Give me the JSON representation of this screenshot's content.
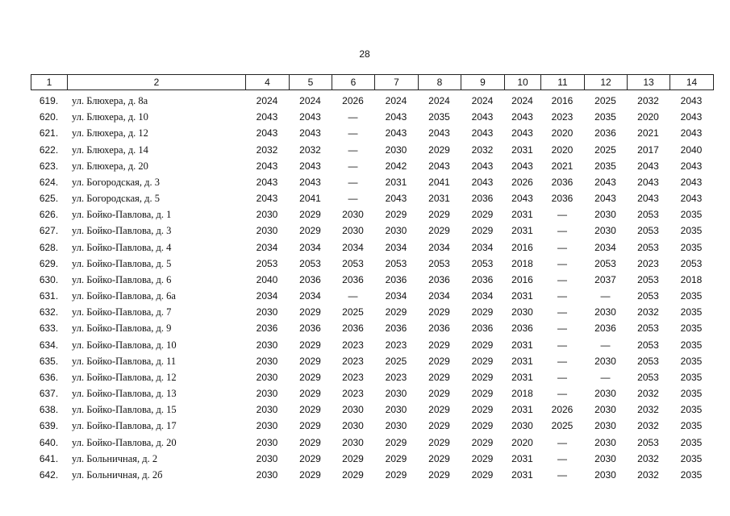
{
  "page_number": "28",
  "table": {
    "header": [
      "1",
      "2",
      "4",
      "5",
      "6",
      "7",
      "8",
      "9",
      "10",
      "11",
      "12",
      "13",
      "14"
    ],
    "rows": [
      [
        "619.",
        "ул. Блюхера, д. 8а",
        "2024",
        "2024",
        "2026",
        "2024",
        "2024",
        "2024",
        "2024",
        "2016",
        "2025",
        "2032",
        "2043"
      ],
      [
        "620.",
        "ул. Блюхера, д. 10",
        "2043",
        "2043",
        "—",
        "2043",
        "2035",
        "2043",
        "2043",
        "2023",
        "2035",
        "2020",
        "2043"
      ],
      [
        "621.",
        "ул. Блюхера, д. 12",
        "2043",
        "2043",
        "—",
        "2043",
        "2043",
        "2043",
        "2043",
        "2020",
        "2036",
        "2021",
        "2043"
      ],
      [
        "622.",
        "ул. Блюхера, д. 14",
        "2032",
        "2032",
        "—",
        "2030",
        "2029",
        "2032",
        "2031",
        "2020",
        "2025",
        "2017",
        "2040"
      ],
      [
        "623.",
        "ул. Блюхера, д. 20",
        "2043",
        "2043",
        "—",
        "2042",
        "2043",
        "2043",
        "2043",
        "2021",
        "2035",
        "2043",
        "2043"
      ],
      [
        "624.",
        "ул. Богородская, д. 3",
        "2043",
        "2043",
        "—",
        "2031",
        "2041",
        "2043",
        "2026",
        "2036",
        "2043",
        "2043",
        "2043"
      ],
      [
        "625.",
        "ул. Богородская, д. 5",
        "2043",
        "2041",
        "—",
        "2043",
        "2031",
        "2036",
        "2043",
        "2036",
        "2043",
        "2043",
        "2043"
      ],
      [
        "626.",
        "ул. Бойко-Павлова, д. 1",
        "2030",
        "2029",
        "2030",
        "2029",
        "2029",
        "2029",
        "2031",
        "—",
        "2030",
        "2053",
        "2035"
      ],
      [
        "627.",
        "ул. Бойко-Павлова, д. 3",
        "2030",
        "2029",
        "2030",
        "2030",
        "2029",
        "2029",
        "2031",
        "—",
        "2030",
        "2053",
        "2035"
      ],
      [
        "628.",
        "ул. Бойко-Павлова, д. 4",
        "2034",
        "2034",
        "2034",
        "2034",
        "2034",
        "2034",
        "2016",
        "—",
        "2034",
        "2053",
        "2035"
      ],
      [
        "629.",
        "ул. Бойко-Павлова, д. 5",
        "2053",
        "2053",
        "2053",
        "2053",
        "2053",
        "2053",
        "2018",
        "—",
        "2053",
        "2023",
        "2053"
      ],
      [
        "630.",
        "ул. Бойко-Павлова, д. 6",
        "2040",
        "2036",
        "2036",
        "2036",
        "2036",
        "2036",
        "2016",
        "—",
        "2037",
        "2053",
        "2018"
      ],
      [
        "631.",
        "ул. Бойко-Павлова, д. 6а",
        "2034",
        "2034",
        "—",
        "2034",
        "2034",
        "2034",
        "2031",
        "—",
        "—",
        "2053",
        "2035"
      ],
      [
        "632.",
        "ул. Бойко-Павлова, д. 7",
        "2030",
        "2029",
        "2025",
        "2029",
        "2029",
        "2029",
        "2030",
        "—",
        "2030",
        "2032",
        "2035"
      ],
      [
        "633.",
        "ул. Бойко-Павлова, д. 9",
        "2036",
        "2036",
        "2036",
        "2036",
        "2036",
        "2036",
        "2036",
        "—",
        "2036",
        "2053",
        "2035"
      ],
      [
        "634.",
        "ул. Бойко-Павлова, д. 10",
        "2030",
        "2029",
        "2023",
        "2023",
        "2029",
        "2029",
        "2031",
        "—",
        "—",
        "2053",
        "2035"
      ],
      [
        "635.",
        "ул. Бойко-Павлова, д. 11",
        "2030",
        "2029",
        "2023",
        "2025",
        "2029",
        "2029",
        "2031",
        "—",
        "2030",
        "2053",
        "2035"
      ],
      [
        "636.",
        "ул. Бойко-Павлова, д. 12",
        "2030",
        "2029",
        "2023",
        "2023",
        "2029",
        "2029",
        "2031",
        "—",
        "—",
        "2053",
        "2035"
      ],
      [
        "637.",
        "ул. Бойко-Павлова, д. 13",
        "2030",
        "2029",
        "2023",
        "2030",
        "2029",
        "2029",
        "2018",
        "—",
        "2030",
        "2032",
        "2035"
      ],
      [
        "638.",
        "ул. Бойко-Павлова, д. 15",
        "2030",
        "2029",
        "2030",
        "2030",
        "2029",
        "2029",
        "2031",
        "2026",
        "2030",
        "2032",
        "2035"
      ],
      [
        "639.",
        "ул. Бойко-Павлова, д. 17",
        "2030",
        "2029",
        "2030",
        "2030",
        "2029",
        "2029",
        "2030",
        "2025",
        "2030",
        "2032",
        "2035"
      ],
      [
        "640.",
        "ул. Бойко-Павлова, д. 20",
        "2030",
        "2029",
        "2030",
        "2029",
        "2029",
        "2029",
        "2020",
        "—",
        "2030",
        "2053",
        "2035"
      ],
      [
        "641.",
        "ул. Больничная, д. 2",
        "2030",
        "2029",
        "2029",
        "2029",
        "2029",
        "2029",
        "2031",
        "—",
        "2030",
        "2032",
        "2035"
      ],
      [
        "642.",
        "ул. Больничная, д. 2б",
        "2030",
        "2029",
        "2029",
        "2029",
        "2029",
        "2029",
        "2031",
        "—",
        "2030",
        "2032",
        "2035"
      ]
    ]
  }
}
